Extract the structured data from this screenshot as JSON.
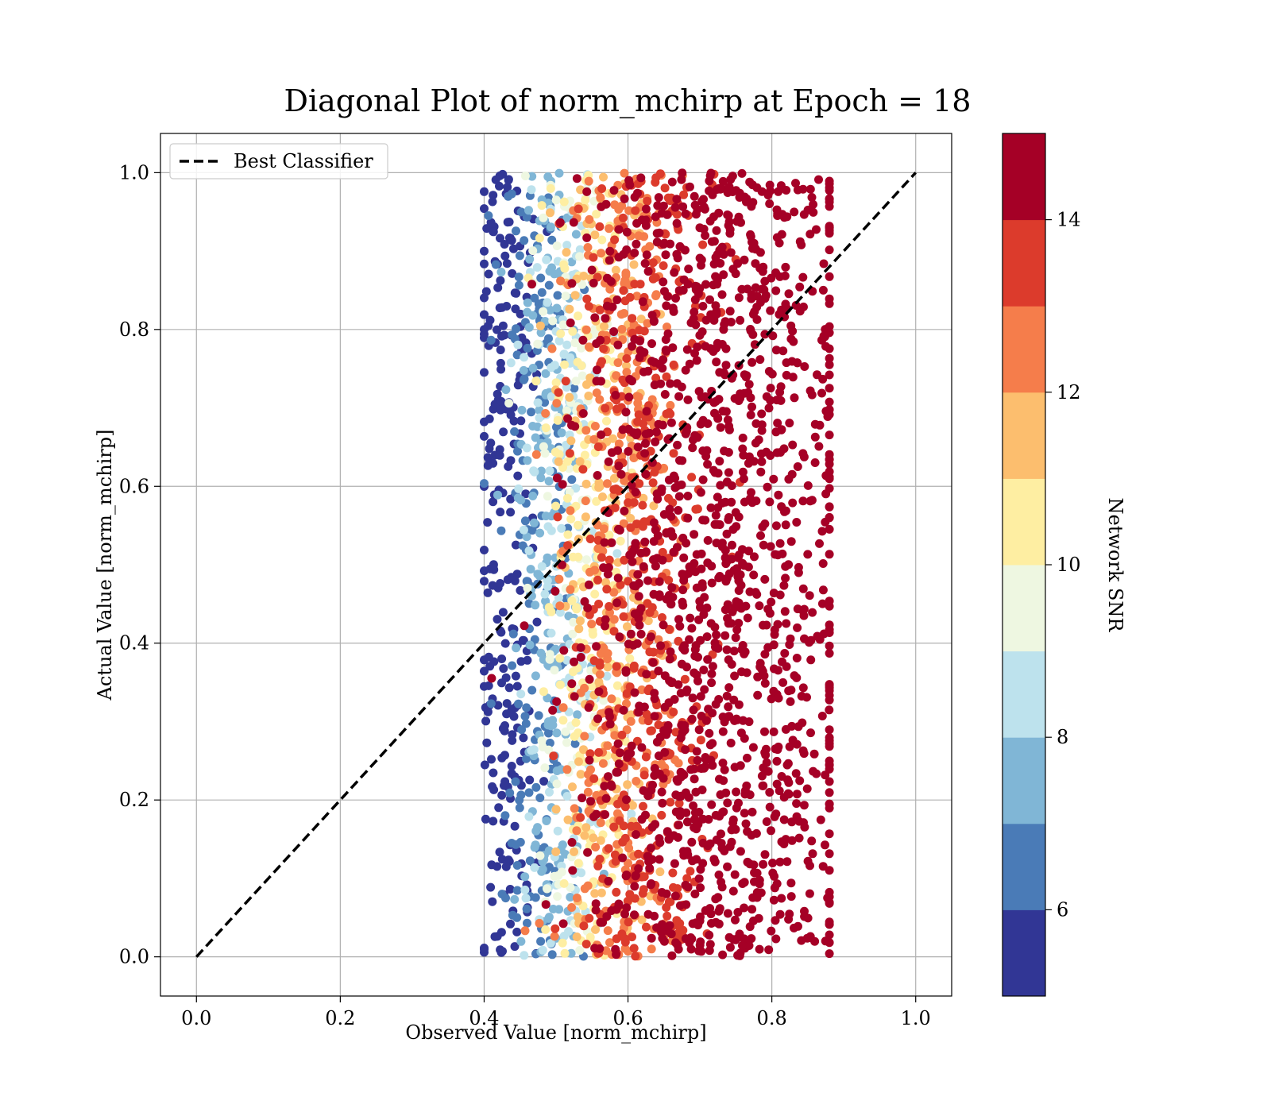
{
  "chart_data": {
    "type": "scatter",
    "title": "Diagonal Plot of norm_mchirp at Epoch = 18",
    "xlabel": "Observed Value [norm_mchirp]",
    "ylabel": "Actual Value [norm_mchirp]",
    "xlim": [
      -0.05,
      1.05
    ],
    "ylim": [
      -0.05,
      1.05
    ],
    "xticks": [
      0.0,
      0.2,
      0.4,
      0.6,
      0.8,
      1.0
    ],
    "yticks": [
      0.0,
      0.2,
      0.4,
      0.6,
      0.8,
      1.0
    ],
    "grid": true,
    "legend": {
      "placement": "upper-left",
      "entries": [
        {
          "label": "Best Classifier",
          "style": "dashed",
          "color": "#000000"
        }
      ]
    },
    "reference_line": {
      "name": "Best Classifier",
      "x": [
        0.0,
        1.0
      ],
      "y": [
        0.0,
        1.0
      ],
      "style": "dashed",
      "color": "#000000"
    },
    "colorbar": {
      "label": "Network SNR",
      "range": [
        5,
        15
      ],
      "ticks": [
        6,
        8,
        10,
        12,
        14
      ],
      "bins": [
        {
          "from": 5,
          "to": 6,
          "color": "#313695"
        },
        {
          "from": 6,
          "to": 7,
          "color": "#4a7bb7"
        },
        {
          "from": 7,
          "to": 8,
          "color": "#80b6d6"
        },
        {
          "from": 8,
          "to": 9,
          "color": "#bde2ed"
        },
        {
          "from": 9,
          "to": 10,
          "color": "#eef7e1"
        },
        {
          "from": 10,
          "to": 11,
          "color": "#feeea2"
        },
        {
          "from": 11,
          "to": 12,
          "color": "#fcbe6e"
        },
        {
          "from": 12,
          "to": 13,
          "color": "#f57d4b"
        },
        {
          "from": 13,
          "to": 14,
          "color": "#dc3b2c"
        },
        {
          "from": 14,
          "to": 15,
          "color": "#a50026"
        }
      ]
    },
    "scatter_summary": {
      "x_range": [
        0.4,
        0.88
      ],
      "y_range": [
        0.0,
        1.0
      ],
      "snr_bands_by_x": [
        {
          "snr": 5.5,
          "x_center": 0.43,
          "x_spread": 0.02
        },
        {
          "snr": 6.5,
          "x_center": 0.47,
          "x_spread": 0.025
        },
        {
          "snr": 7.5,
          "x_center": 0.49,
          "x_spread": 0.025
        },
        {
          "snr": 8.5,
          "x_center": 0.51,
          "x_spread": 0.03
        },
        {
          "snr": 9.5,
          "x_center": 0.52,
          "x_spread": 0.03
        },
        {
          "snr": 10.5,
          "x_center": 0.54,
          "x_spread": 0.03
        },
        {
          "snr": 11.5,
          "x_center": 0.57,
          "x_spread": 0.035
        },
        {
          "snr": 12.5,
          "x_center": 0.59,
          "x_spread": 0.04
        },
        {
          "snr": 13.5,
          "x_center": 0.62,
          "x_spread": 0.05
        },
        {
          "snr": 14.5,
          "x_center": 0.73,
          "x_spread": 0.08
        }
      ]
    }
  }
}
